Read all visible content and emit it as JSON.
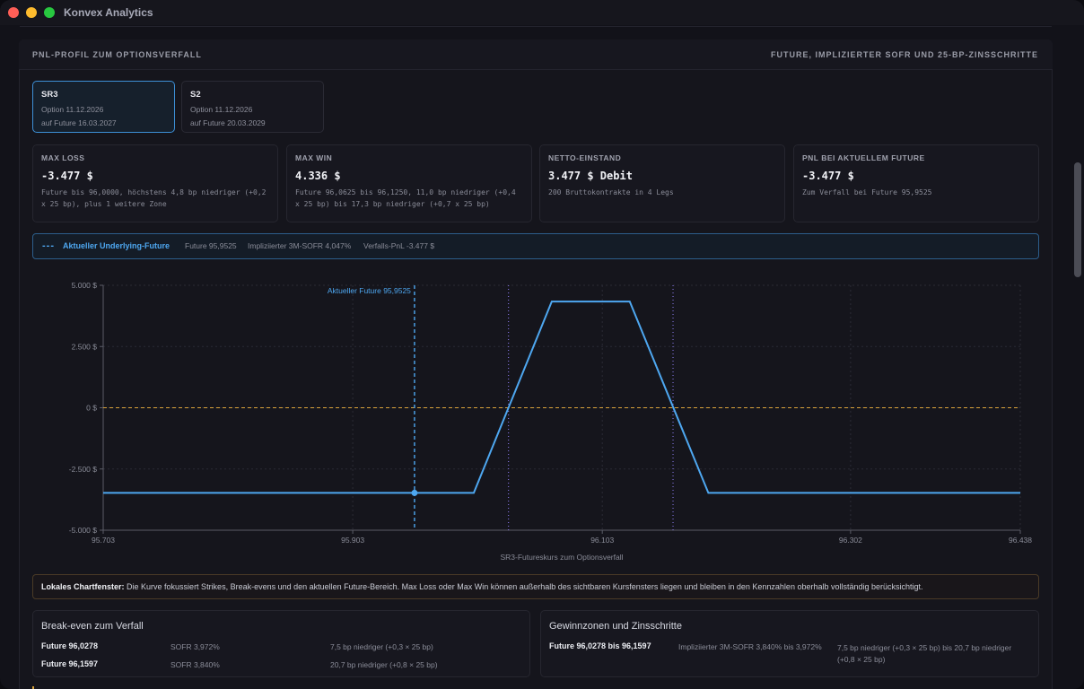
{
  "app": {
    "title": "Konvex Analytics"
  },
  "panel": {
    "title": "PNL-PROFIL ZUM OPTIONSVERFALL",
    "subtitle": "FUTURE, IMPLIZIERTER SOFR UND 25-BP-ZINSSCHRITTE"
  },
  "contracts": [
    {
      "name": "SR3",
      "option": "Option 11.12.2026",
      "future": "auf Future 16.03.2027",
      "active": true
    },
    {
      "name": "S2",
      "option": "Option 11.12.2026",
      "future": "auf Future 20.03.2029",
      "active": false
    }
  ],
  "stats": [
    {
      "label": "MAX LOSS",
      "value": "-3.477 $",
      "desc": "Future bis 96,0000, höchstens 4,8 bp niedriger (+0,2 x 25 bp), plus 1 weitere Zone"
    },
    {
      "label": "MAX WIN",
      "value": "4.336 $",
      "desc": "Future 96,0625 bis 96,1250, 11,0 bp niedriger (+0,4 x 25 bp) bis 17,3 bp niedriger (+0,7 x 25 bp)"
    },
    {
      "label": "NETTO-EINSTAND",
      "value": "3.477 $ Debit",
      "desc": "200 Bruttokontrakte in 4 Legs"
    },
    {
      "label": "PNL BEI AKTUELLEM FUTURE",
      "value": "-3.477 $",
      "desc": "Zum Verfall bei Future 95,9525"
    }
  ],
  "legend": {
    "dash": "---",
    "name": "Aktueller Underlying-Future",
    "future": "Future 95,9525",
    "sofr": "Impliziierter 3M-SOFR 4,047%",
    "pnl": "Verfalls-PnL -3.477 $",
    "line_color": "#4ea7f0"
  },
  "chart_data": {
    "type": "line",
    "xlabel": "SR3-Futureskurs zum Optionsverfall",
    "ylabel": "",
    "xlim": [
      95.703,
      96.438
    ],
    "ylim": [
      -5000,
      5000
    ],
    "x_ticks": [
      "95.703",
      "95.903",
      "96.103",
      "96.302",
      "96.438"
    ],
    "x_tick_values": [
      95.703,
      95.903,
      96.103,
      96.302,
      96.438
    ],
    "y_ticks": [
      "5.000 $",
      "2.500 $",
      "0 $",
      "-2.500 $",
      "-5.000 $"
    ],
    "y_tick_values": [
      5000,
      2500,
      0,
      -2500,
      -5000
    ],
    "grid": true,
    "series": [
      {
        "name": "",
        "color": "#4ea7f0",
        "x": [
          95.703,
          96.0,
          96.0625,
          96.125,
          96.188,
          96.438
        ],
        "y": [
          -3477,
          -3477,
          4336,
          4336,
          -3477,
          -3477
        ]
      }
    ],
    "current_future": {
      "x": 95.9525,
      "y": -3477,
      "label": "Aktueller Future 95,9525",
      "color": "#4ea7f0"
    },
    "break_evens": [
      96.0278,
      96.1597
    ],
    "zero_line_color": "#d9a23a"
  },
  "note": {
    "bold": "Lokales Chartfenster:",
    "text": " Die Kurve fokussiert Strikes, Break-evens und den aktuellen Future-Bereich. Max Loss oder Max Win können außerhalb des sichtbaren Kursfensters liegen und bleiben in den Kennzahlen oberhalb vollständig berücksichtigt."
  },
  "breakeven": {
    "title": "Break-even zum Verfall",
    "rows": [
      {
        "future": "Future 96,0278",
        "sofr": "SOFR 3,972%",
        "shift": "7,5 bp niedriger (+0,3 × 25 bp)"
      },
      {
        "future": "Future 96,1597",
        "sofr": "SOFR 3,840%",
        "shift": "20,7 bp niedriger (+0,8 × 25 bp)"
      }
    ]
  },
  "zones": {
    "title": "Gewinnzonen und Zinsschritte",
    "rows": [
      {
        "future": "Future 96,0278 bis 96,1597",
        "sofr": "Impliziierter 3M-SOFR 3,840% bis 3,972%",
        "shift": "7,5 bp niedriger (+0,3 × 25 bp) bis 20,7 bp niedriger (+0,8 × 25 bp)"
      }
    ]
  }
}
